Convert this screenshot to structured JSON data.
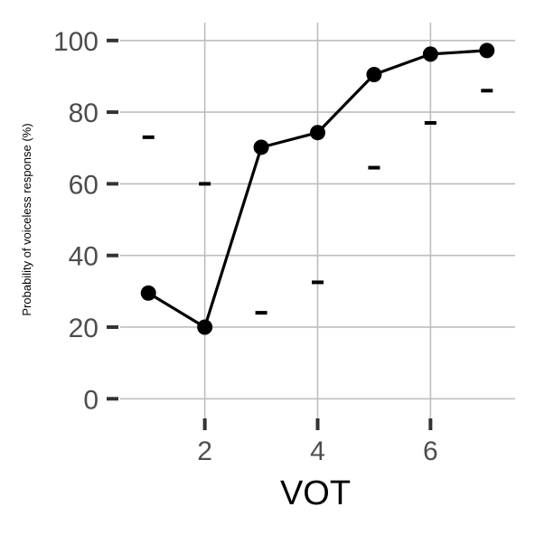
{
  "chart_data": {
    "type": "line",
    "title": "",
    "xlabel": "VOT",
    "ylabel": "Probability of voiceless response (%)",
    "xlim": [
      0.5,
      7.5
    ],
    "ylim": [
      -7,
      105
    ],
    "x_ticks": [
      2,
      4,
      6
    ],
    "y_ticks": [
      0,
      20,
      40,
      60,
      80,
      100
    ],
    "grid": true,
    "legend": "none",
    "series": [
      {
        "marker": "circle",
        "line": true,
        "color": "#000000",
        "x": [
          1,
          2,
          3,
          4,
          5,
          6,
          7
        ],
        "y": [
          29.5,
          20,
          70.2,
          74.3,
          90.5,
          96.2,
          97.2
        ]
      },
      {
        "marker": "dash",
        "line": false,
        "color": "#000000",
        "x": [
          1,
          2,
          3,
          4,
          5,
          6,
          7
        ],
        "y": [
          73,
          60,
          24,
          32.5,
          64.5,
          77,
          86
        ]
      }
    ]
  }
}
